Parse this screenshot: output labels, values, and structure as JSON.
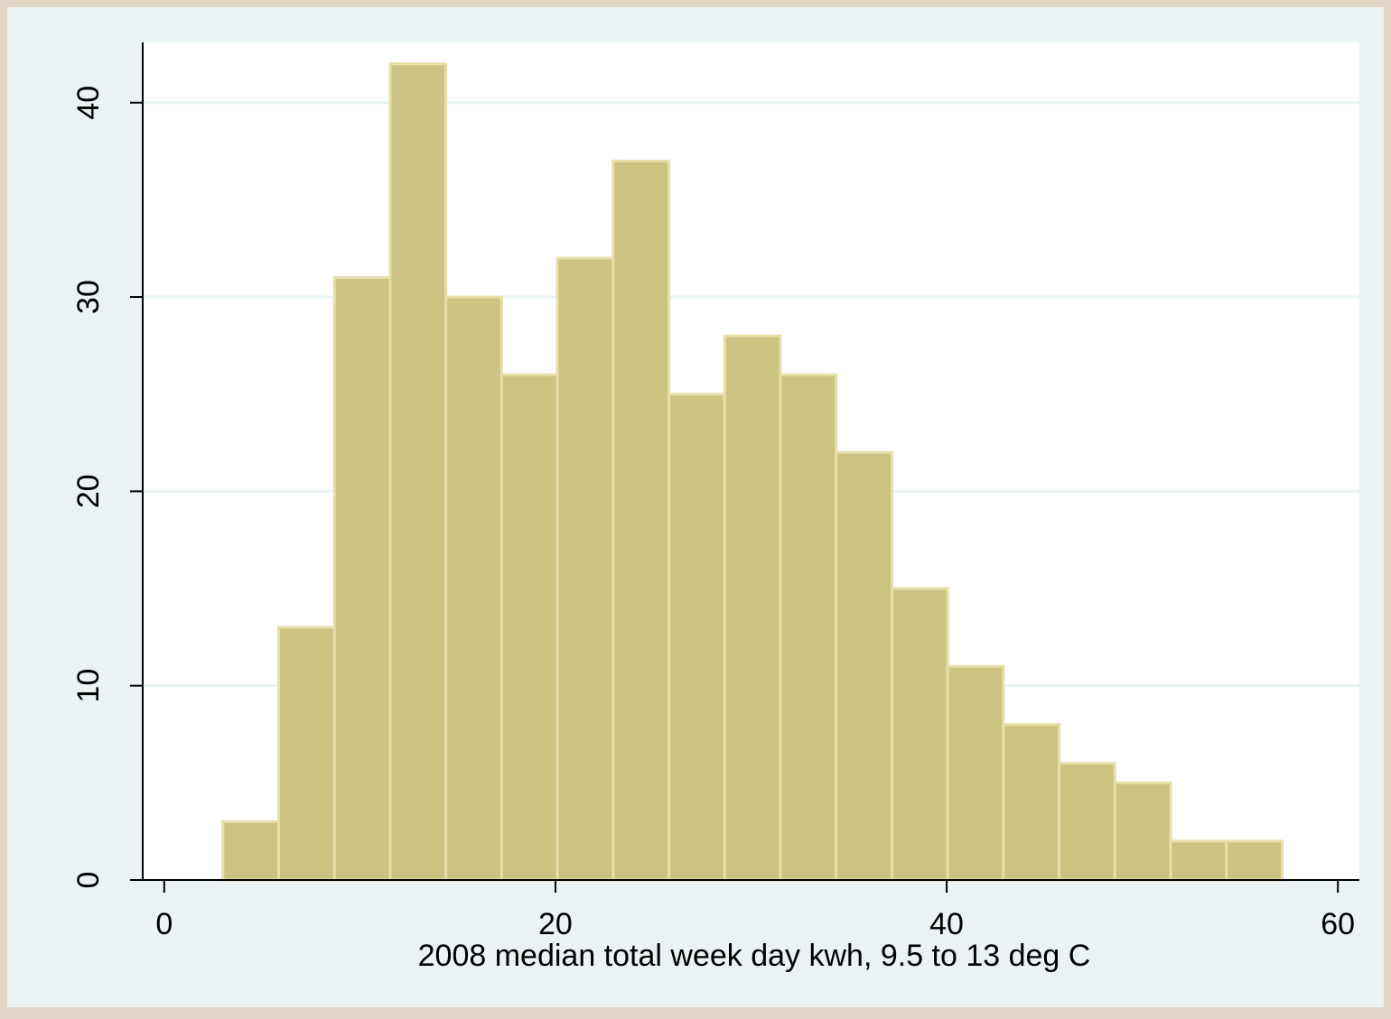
{
  "chart_data": {
    "type": "histogram",
    "x_label": "2008 median total week day kwh, 9.5 to 13 deg C",
    "bins": [
      3.0,
      5.85,
      8.7,
      11.55,
      14.4,
      17.25,
      20.1,
      22.95,
      25.8,
      28.65,
      31.5,
      34.35,
      37.2,
      40.05,
      42.9,
      45.75,
      48.6,
      51.45,
      54.3,
      57.15
    ],
    "counts": [
      3,
      13,
      31,
      42,
      30,
      26,
      32,
      37,
      25,
      28,
      26,
      22,
      15,
      11,
      8,
      6,
      5,
      2,
      2
    ],
    "color": "#cbc382",
    "xlim": [
      -1.1,
      61.1
    ],
    "xticks": [
      0,
      20,
      40,
      60
    ],
    "ylim": [
      0,
      43.1
    ],
    "yticks": [
      0,
      10,
      20,
      30,
      40
    ],
    "grid": true
  }
}
